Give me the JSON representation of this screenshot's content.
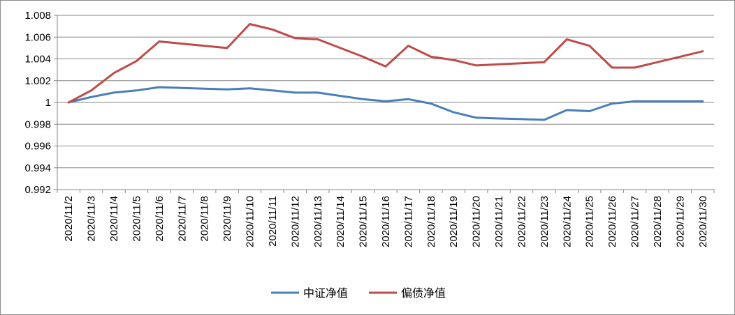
{
  "chart_data": {
    "type": "line",
    "title": "",
    "xlabel": "",
    "ylabel": "",
    "categories": [
      "2020/11/2",
      "2020/11/3",
      "2020/11/4",
      "2020/11/5",
      "2020/11/6",
      "2020/11/7",
      "2020/11/8",
      "2020/11/9",
      "2020/11/10",
      "2020/11/11",
      "2020/11/12",
      "2020/11/13",
      "2020/11/14",
      "2020/11/15",
      "2020/11/16",
      "2020/11/17",
      "2020/11/18",
      "2020/11/19",
      "2020/11/20",
      "2020/11/21",
      "2020/11/22",
      "2020/11/23",
      "2020/11/24",
      "2020/11/25",
      "2020/11/26",
      "2020/11/27",
      "2020/11/28",
      "2020/11/29",
      "2020/11/30"
    ],
    "y_ticks": [
      "0.992",
      "0.994",
      "0.996",
      "0.998",
      "1",
      "1.002",
      "1.004",
      "1.006",
      "1.008"
    ],
    "ylim": [
      0.992,
      1.008
    ],
    "grid": true,
    "legend_position": "bottom",
    "series": [
      {
        "name": "中证净值",
        "color": "#4a7ebb",
        "values": [
          1.0,
          1.0005,
          1.0009,
          1.0011,
          1.0014,
          1.00133,
          1.00127,
          1.0012,
          1.0013,
          1.0011,
          1.0009,
          1.0009,
          1.0006,
          1.0003,
          1.0001,
          1.0003,
          0.9999,
          0.9991,
          0.9986,
          0.99853,
          0.99847,
          0.9984,
          0.9993,
          0.9992,
          0.9999,
          1.0001,
          1.0001,
          1.0001,
          1.0001
        ]
      },
      {
        "name": "偏债净值",
        "color": "#be4b48",
        "values": [
          1.0,
          1.0011,
          1.0027,
          1.0038,
          1.0056,
          1.0054,
          1.0052,
          1.005,
          1.0072,
          1.0067,
          1.0059,
          1.0058,
          1.005,
          1.0042,
          1.0033,
          1.0052,
          1.0042,
          1.0039,
          1.0034,
          1.0035,
          1.0036,
          1.0037,
          1.0058,
          1.0052,
          1.0032,
          1.0032,
          1.0037,
          1.0042,
          1.0047
        ]
      }
    ]
  }
}
